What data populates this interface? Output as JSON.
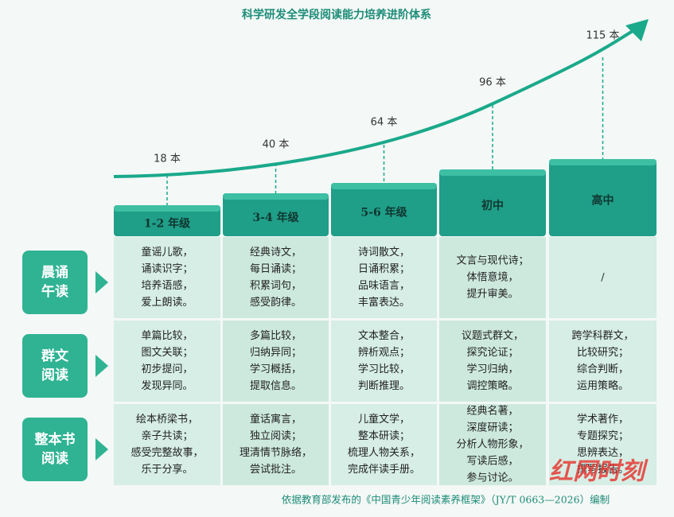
{
  "title": "科学研发全学段阅读能力培养进阶体系",
  "counts": [
    "18 本",
    "40 本",
    "64 本",
    "96 本",
    "115 本"
  ],
  "stages": [
    "1-2 年级",
    "3-4 年级",
    "5-6 年级",
    "初中",
    "高中"
  ],
  "rows": [
    {
      "label": [
        "晨诵",
        "午读"
      ],
      "cells": [
        [
          "童谣儿歌，",
          "诵读识字；",
          "培养语感，",
          "爱上朗读。"
        ],
        [
          "经典诗文，",
          "每日诵读；",
          "积累词句，",
          "感受韵律。"
        ],
        [
          "诗词散文，",
          "日诵积累；",
          "品味语言，",
          "丰富表达。"
        ],
        [
          "文言与现代诗；",
          "体悟意境，",
          "提升审美。"
        ],
        [
          "/"
        ]
      ]
    },
    {
      "label": [
        "群文",
        "阅读"
      ],
      "cells": [
        [
          "单篇比较，",
          "图文关联；",
          "初步提问，",
          "发现异同。"
        ],
        [
          "多篇比较，",
          "归纳异同；",
          "学习概括，",
          "提取信息。"
        ],
        [
          "文本整合，",
          "辨析观点；",
          "学习比较，",
          "判断推理。"
        ],
        [
          "议题式群文，",
          "探究论证；",
          "学习归纳，",
          "调控策略。"
        ],
        [
          "跨学科群文，",
          "比较研究；",
          "综合判断，",
          "运用策略。"
        ]
      ]
    },
    {
      "label": [
        "整本书",
        "阅读"
      ],
      "cells": [
        [
          "绘本桥梁书，",
          "亲子共读；",
          "感受完整故事，",
          "乐于分享。"
        ],
        [
          "童话寓言，",
          "独立阅读；",
          "理清情节脉络，",
          "尝试批注。"
        ],
        [
          "儿童文学，",
          "整本研读；",
          "梳理人物关系，",
          "完成伴读手册。"
        ],
        [
          "经典名著，",
          "深度研读；",
          "分析人物形象，",
          "写读后感，",
          "参与讨论。"
        ],
        [
          "学术著作，",
          "专题探究；",
          "思辨表达，",
          "撰写报告。"
        ]
      ]
    }
  ],
  "footer": "依据教育部发布的《中国青少年阅读素养框架》（JY/T 0663—2026）编制",
  "watermark": "红网时刻"
}
